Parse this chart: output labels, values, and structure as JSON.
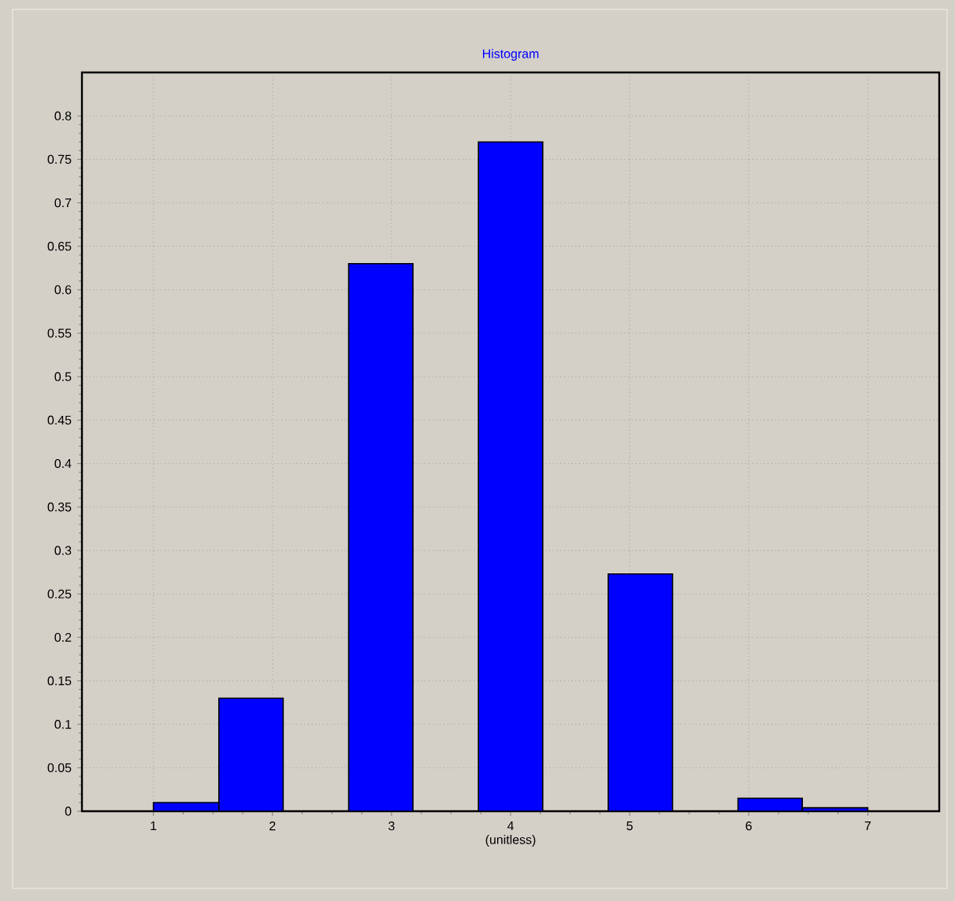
{
  "chart_data": {
    "type": "histogram",
    "title": "Histogram",
    "xlabel": "(unitless)",
    "bins": [
      1,
      1.55,
      2.09,
      2.64,
      3.18,
      3.73,
      4.27,
      4.82,
      5.36,
      5.91,
      6.45,
      7
    ],
    "values": [
      0.01,
      0.13,
      0,
      0.63,
      0,
      0.77,
      0,
      0.273,
      0,
      0.015,
      0.004
    ],
    "color": "#0000ff",
    "xlim": [
      0.4,
      7.6
    ],
    "xticks": [
      1,
      2,
      3,
      4,
      5,
      6,
      7
    ],
    "ylim": [
      0,
      0.85
    ],
    "yticks": [
      0,
      0.05,
      0.1,
      0.15,
      0.2,
      0.25,
      0.3,
      0.35,
      0.4,
      0.45,
      0.5,
      0.55,
      0.6,
      0.65,
      0.7,
      0.75,
      0.8
    ],
    "grid": true
  }
}
